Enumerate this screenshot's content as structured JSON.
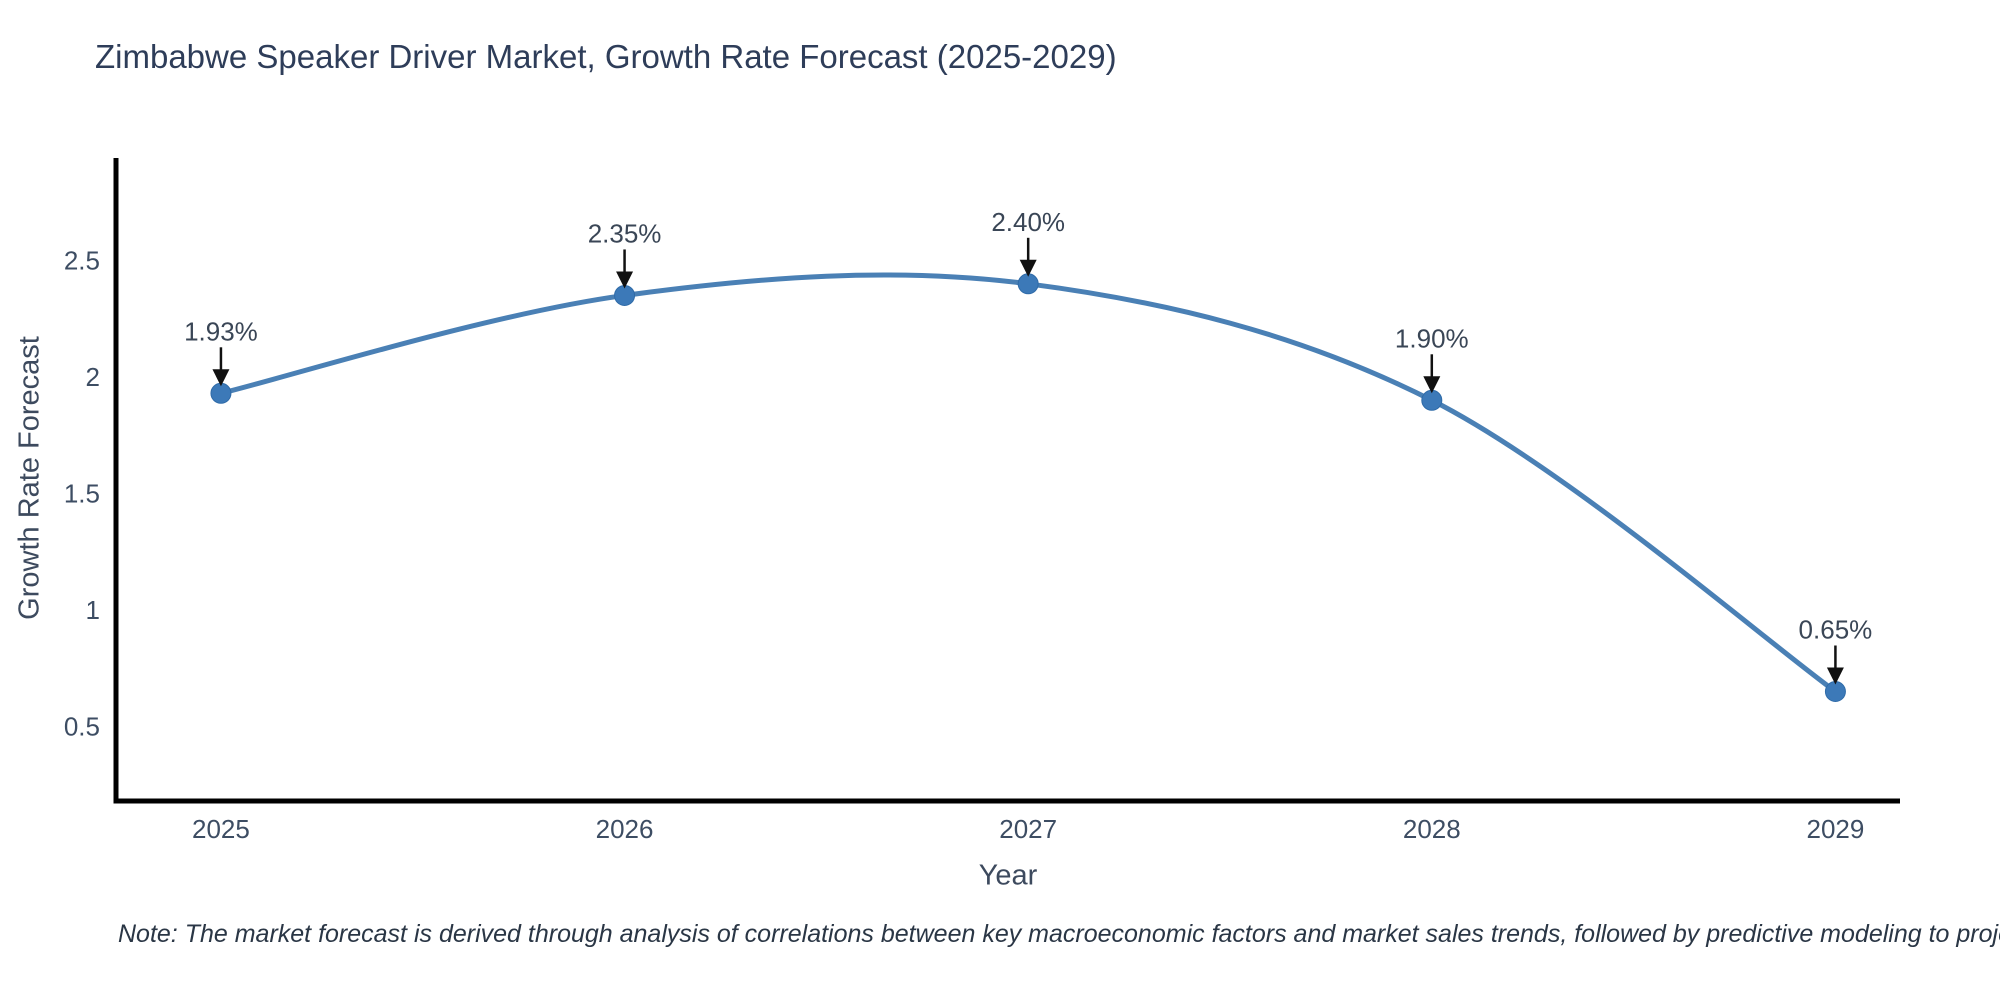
{
  "chart_data": {
    "type": "line",
    "title": "Zimbabwe Speaker Driver Market, Growth Rate Forecast (2025-2029)",
    "xlabel": "Year",
    "ylabel": "Growth Rate Forecast",
    "x": [
      2025,
      2026,
      2027,
      2028,
      2029
    ],
    "values": [
      1.93,
      2.35,
      2.4,
      1.9,
      0.65
    ],
    "point_labels": [
      "1.93%",
      "2.35%",
      "2.40%",
      "1.90%",
      "0.65%"
    ],
    "yticks": [
      0.5,
      1,
      1.5,
      2,
      2.5
    ],
    "ytick_labels": [
      "0.5",
      "1",
      "1.5",
      "2",
      "2.5"
    ],
    "xtick_labels": [
      "2025",
      "2026",
      "2027",
      "2028",
      "2029"
    ],
    "ylim": [
      0.18,
      2.94
    ],
    "xlim": [
      2024.74,
      2029.16
    ],
    "grid": false,
    "legend": "none",
    "colors": {
      "line": "#4a80b5",
      "marker": "#3c79b8",
      "marker_edge": "#2f6ba8",
      "axis": "#000000",
      "title_text": "#2e3d59",
      "tick_text": "#3d4d63",
      "axis_title_text": "#3d4a5e",
      "annotation_text": "#3a4656",
      "arrow": "#111111",
      "background": "#ffffff"
    }
  },
  "note": {
    "text": "Note: The market forecast is derived through analysis of correlations between key macroeconomic factors and market sales trends, followed by predictive modeling to project future sales"
  }
}
